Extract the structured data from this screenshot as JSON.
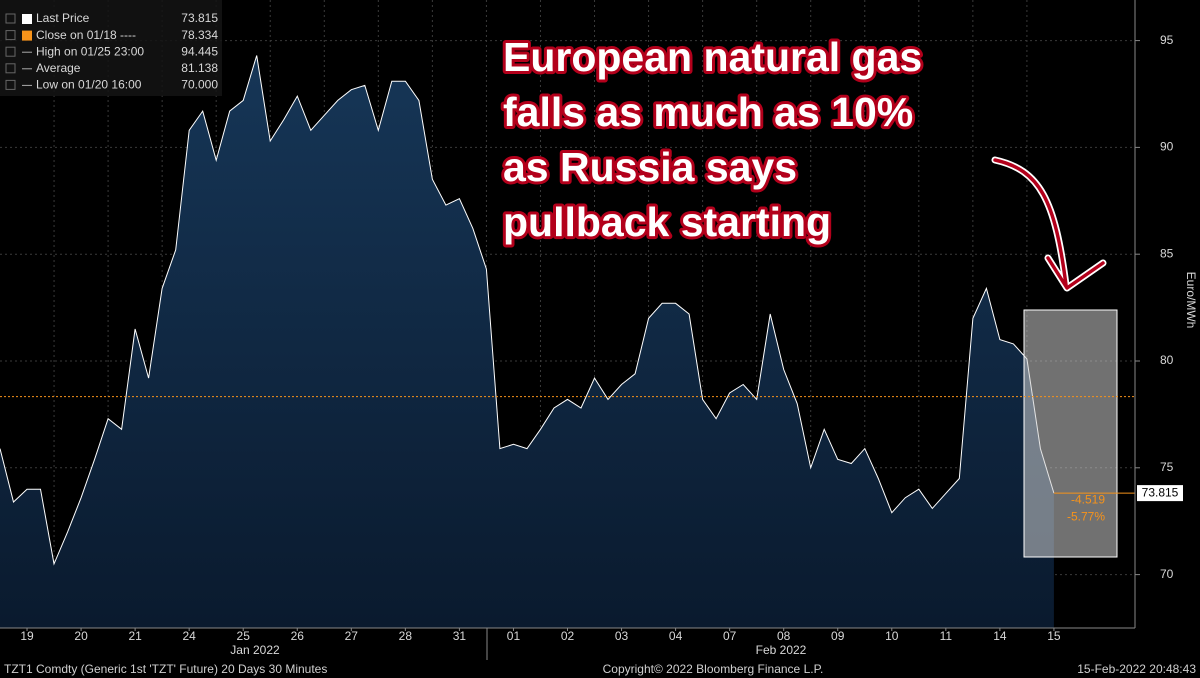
{
  "chart_data": {
    "type": "area",
    "title": "European natural gas falls as much as 10% as Russia says pullback starting",
    "annotation_lines": [
      "European natural gas",
      "falls as much as 10%",
      "as Russia says",
      "pullback starting"
    ],
    "y_label": "Euro/MWh",
    "x_groups": [
      "Jan 2022",
      "Feb 2022"
    ],
    "footer_left": "TZT1 Comdty (Generic 1st 'TZT' Future) 20 Days 30 Minutes",
    "footer_center": "Copyright© 2022 Bloomberg Finance L.P.",
    "footer_right": "15-Feb-2022 20:48:43",
    "legend": [
      {
        "name": "Last Price",
        "value": 73.815
      },
      {
        "name": "Close on 01/18 ----",
        "value": 78.334
      },
      {
        "name": "High on 01/25 23:00",
        "value": 94.445
      },
      {
        "name": "Average",
        "value": 81.138
      },
      {
        "name": "Low on 01/20 16:00",
        "value": {
          "value": 70,
          "label": "70.000"
        }
      }
    ],
    "change": {
      "value": -4.519,
      "percent": {
        "value": -5.77,
        "label": "-5.77%"
      }
    },
    "colors": {
      "line": "#ffffff",
      "area": "#0f2744",
      "close": "#f7931a"
    },
    "x": [
      -0.5,
      -0.25,
      0,
      0.25,
      0.5,
      0.75,
      1,
      1.25,
      1.5,
      1.75,
      2,
      2.25,
      2.5,
      2.75,
      3,
      3.25,
      3.5,
      3.75,
      4,
      4.25,
      4.5,
      4.75,
      5,
      5.25,
      5.5,
      5.75,
      6,
      6.25,
      6.5,
      6.75,
      7,
      7.25,
      7.5,
      7.75,
      8,
      8.25,
      8.5,
      8.75,
      9,
      9.25,
      9.5,
      9.75,
      10,
      10.25,
      10.5,
      10.75,
      11,
      11.25,
      11.5,
      11.75,
      12,
      12.25,
      12.5,
      12.75,
      13,
      13.25,
      13.5,
      13.75,
      14,
      14.25,
      14.5,
      14.75,
      15,
      15.25,
      15.5,
      15.75,
      16,
      16.25,
      16.5,
      16.75,
      17,
      17.25,
      17.5,
      17.75,
      18,
      18.25,
      18.5,
      18.75,
      19
    ],
    "series": [
      {
        "name": "Last Price",
        "values": [
          75.9,
          73.4,
          74.0,
          74.0,
          70.5,
          72.0,
          73.6,
          75.4,
          77.3,
          76.8,
          81.5,
          79.2,
          83.4,
          85.2,
          90.8,
          91.7,
          89.4,
          91.7,
          92.2,
          94.3,
          90.3,
          91.3,
          92.4,
          90.8,
          91.5,
          92.2,
          92.7,
          92.9,
          90.8,
          93.1,
          93.1,
          92.2,
          88.5,
          87.3,
          87.6,
          86.2,
          84.3,
          75.9,
          76.1,
          75.9,
          76.8,
          77.8,
          78.2,
          77.8,
          79.2,
          78.2,
          78.9,
          79.4,
          82.0,
          82.7,
          82.7,
          82.2,
          78.2,
          77.3,
          78.5,
          78.9,
          78.2,
          82.2,
          79.6,
          78.0,
          75.0,
          76.8,
          75.4,
          75.2,
          75.9,
          74.5,
          72.9,
          73.6,
          74.0,
          73.1,
          73.8,
          74.5,
          82.0,
          83.4,
          81.0,
          80.8,
          80.1,
          75.9,
          73.815
        ]
      }
    ],
    "xlim": [
      -0.5,
      20.5
    ],
    "ylim": [
      67.5,
      96.9
    ],
    "xticks": [
      {
        "value": 0,
        "label": "19"
      },
      {
        "value": 1,
        "label": "20"
      },
      {
        "value": 2,
        "label": "21"
      },
      {
        "value": 3,
        "label": "24"
      },
      {
        "value": 4,
        "label": "25"
      },
      {
        "value": 5,
        "label": "26"
      },
      {
        "value": 6,
        "label": "27"
      },
      {
        "value": 7,
        "label": "28"
      },
      {
        "value": 8,
        "label": "31"
      },
      {
        "value": 9,
        "label": "01"
      },
      {
        "value": 10,
        "label": "02"
      },
      {
        "value": 11,
        "label": "03"
      },
      {
        "value": 12,
        "label": "04"
      },
      {
        "value": 13,
        "label": "07"
      },
      {
        "value": 14,
        "label": "08"
      },
      {
        "value": 15,
        "label": "09"
      },
      {
        "value": 16,
        "label": "10"
      },
      {
        "value": 17,
        "label": "11"
      },
      {
        "value": 18,
        "label": "14"
      },
      {
        "value": 19,
        "label": "15"
      }
    ],
    "yticks": [
      70,
      75,
      80,
      85,
      90,
      95
    ],
    "grid": true
  }
}
